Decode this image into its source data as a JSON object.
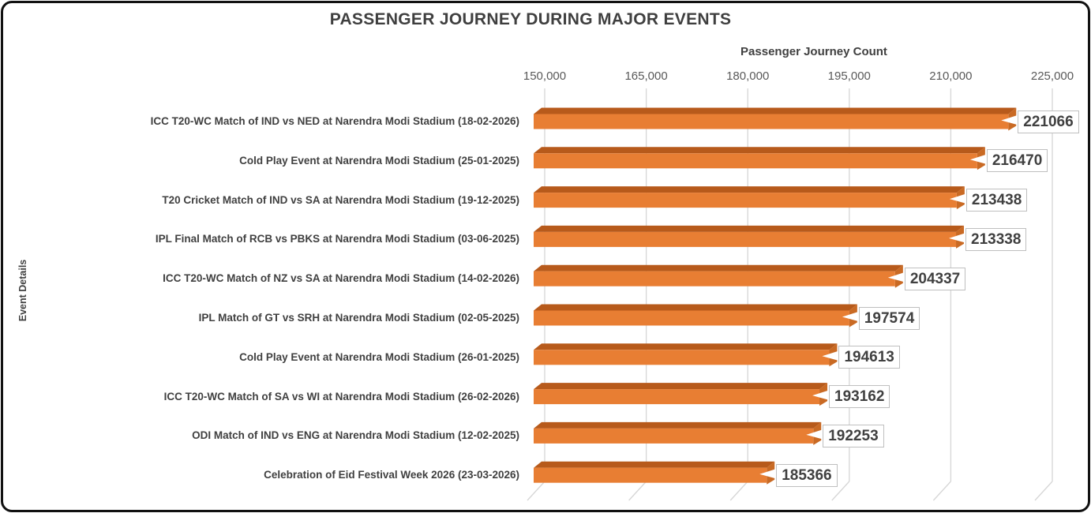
{
  "chart_data": {
    "type": "bar",
    "orientation": "horizontal",
    "title": "PASSENGER JOURNEY DURING MAJOR EVENTS",
    "xlabel": "Passenger Journey Count",
    "ylabel": "Event Details",
    "xlim": [
      150000,
      225000
    ],
    "xticks": [
      150000,
      165000,
      180000,
      195000,
      210000,
      225000
    ],
    "xtick_labels": [
      "150,000",
      "165,000",
      "180,000",
      "195,000",
      "210,000",
      "225,000"
    ],
    "grid": true,
    "legend": false,
    "categories": [
      "ICC T20-WC Match of IND vs NED at Narendra Modi Stadium (18-02-2026)",
      "Cold Play Event at Narendra Modi Stadium (25-01-2025)",
      "T20 Cricket Match of IND vs SA at Narendra Modi Stadium (19-12-2025)",
      "IPL Final Match of RCB vs PBKS at Narendra Modi Stadium (03-06-2025)",
      "ICC T20-WC Match of NZ vs SA at Narendra Modi Stadium (14-02-2026)",
      "IPL Match of GT vs SRH at Narendra Modi Stadium (02-05-2025)",
      "Cold Play Event at Narendra Modi Stadium (26-01-2025)",
      "ICC T20-WC Match of SA vs WI at Narendra Modi Stadium (26-02-2026)",
      "ODI Match of IND vs ENG at Narendra Modi Stadium (12-02-2025)",
      "Celebration of Eid Festival Week 2026  (23-03-2026)"
    ],
    "values": [
      221066,
      216470,
      213438,
      213338,
      204337,
      197574,
      194613,
      193162,
      192253,
      185366
    ],
    "data_labels": [
      "221066",
      "216470",
      "213438",
      "213338",
      "204337",
      "197574",
      "194613",
      "193162",
      "192253",
      "185366"
    ]
  },
  "colors": {
    "bar_front": "#E87E33",
    "bar_top": "#B75A1B",
    "bar_end": "#C96A24",
    "gridline": "#D6D6D6",
    "title_text": "#3F3F3F",
    "axis_text": "#404040",
    "tick_text": "#595959",
    "label_box_border": "#BFBFBF",
    "label_box_bg": "#FFFFFF",
    "frame": "#111111"
  }
}
